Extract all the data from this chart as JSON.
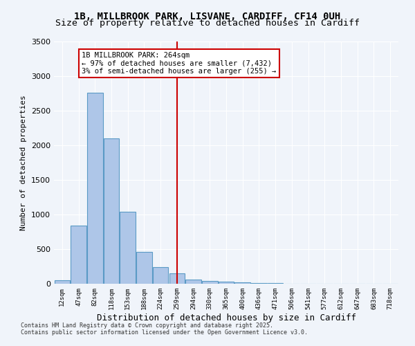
{
  "title_line1": "1B, MILLBROOK PARK, LISVANE, CARDIFF, CF14 0UH",
  "title_line2": "Size of property relative to detached houses in Cardiff",
  "xlabel": "Distribution of detached houses by size in Cardiff",
  "ylabel": "Number of detached properties",
  "bar_categories": [
    "12sqm",
    "47sqm",
    "82sqm",
    "118sqm",
    "153sqm",
    "188sqm",
    "224sqm",
    "259sqm",
    "294sqm",
    "330sqm",
    "365sqm",
    "400sqm",
    "436sqm",
    "471sqm",
    "506sqm",
    "541sqm",
    "577sqm",
    "612sqm",
    "647sqm",
    "683sqm",
    "718sqm"
  ],
  "bar_values": [
    55,
    840,
    2760,
    2100,
    1040,
    460,
    245,
    155,
    60,
    45,
    30,
    18,
    10,
    6,
    3,
    2,
    1,
    1,
    0,
    0,
    0
  ],
  "bar_color": "#aec6e8",
  "bar_edgecolor": "#5a9ac5",
  "vline_x": 7,
  "vline_color": "#cc0000",
  "annotation_title": "1B MILLBROOK PARK: 264sqm",
  "annotation_left": "← 97% of detached houses are smaller (7,432)",
  "annotation_right": "3% of semi-detached houses are larger (255) →",
  "annotation_box_color": "#cc0000",
  "ylim": [
    0,
    3500
  ],
  "yticks": [
    0,
    500,
    1000,
    1500,
    2000,
    2500,
    3000,
    3500
  ],
  "background_color": "#f0f4fa",
  "footer": "Contains HM Land Registry data © Crown copyright and database right 2025.\nContains public sector information licensed under the Open Government Licence v3.0."
}
